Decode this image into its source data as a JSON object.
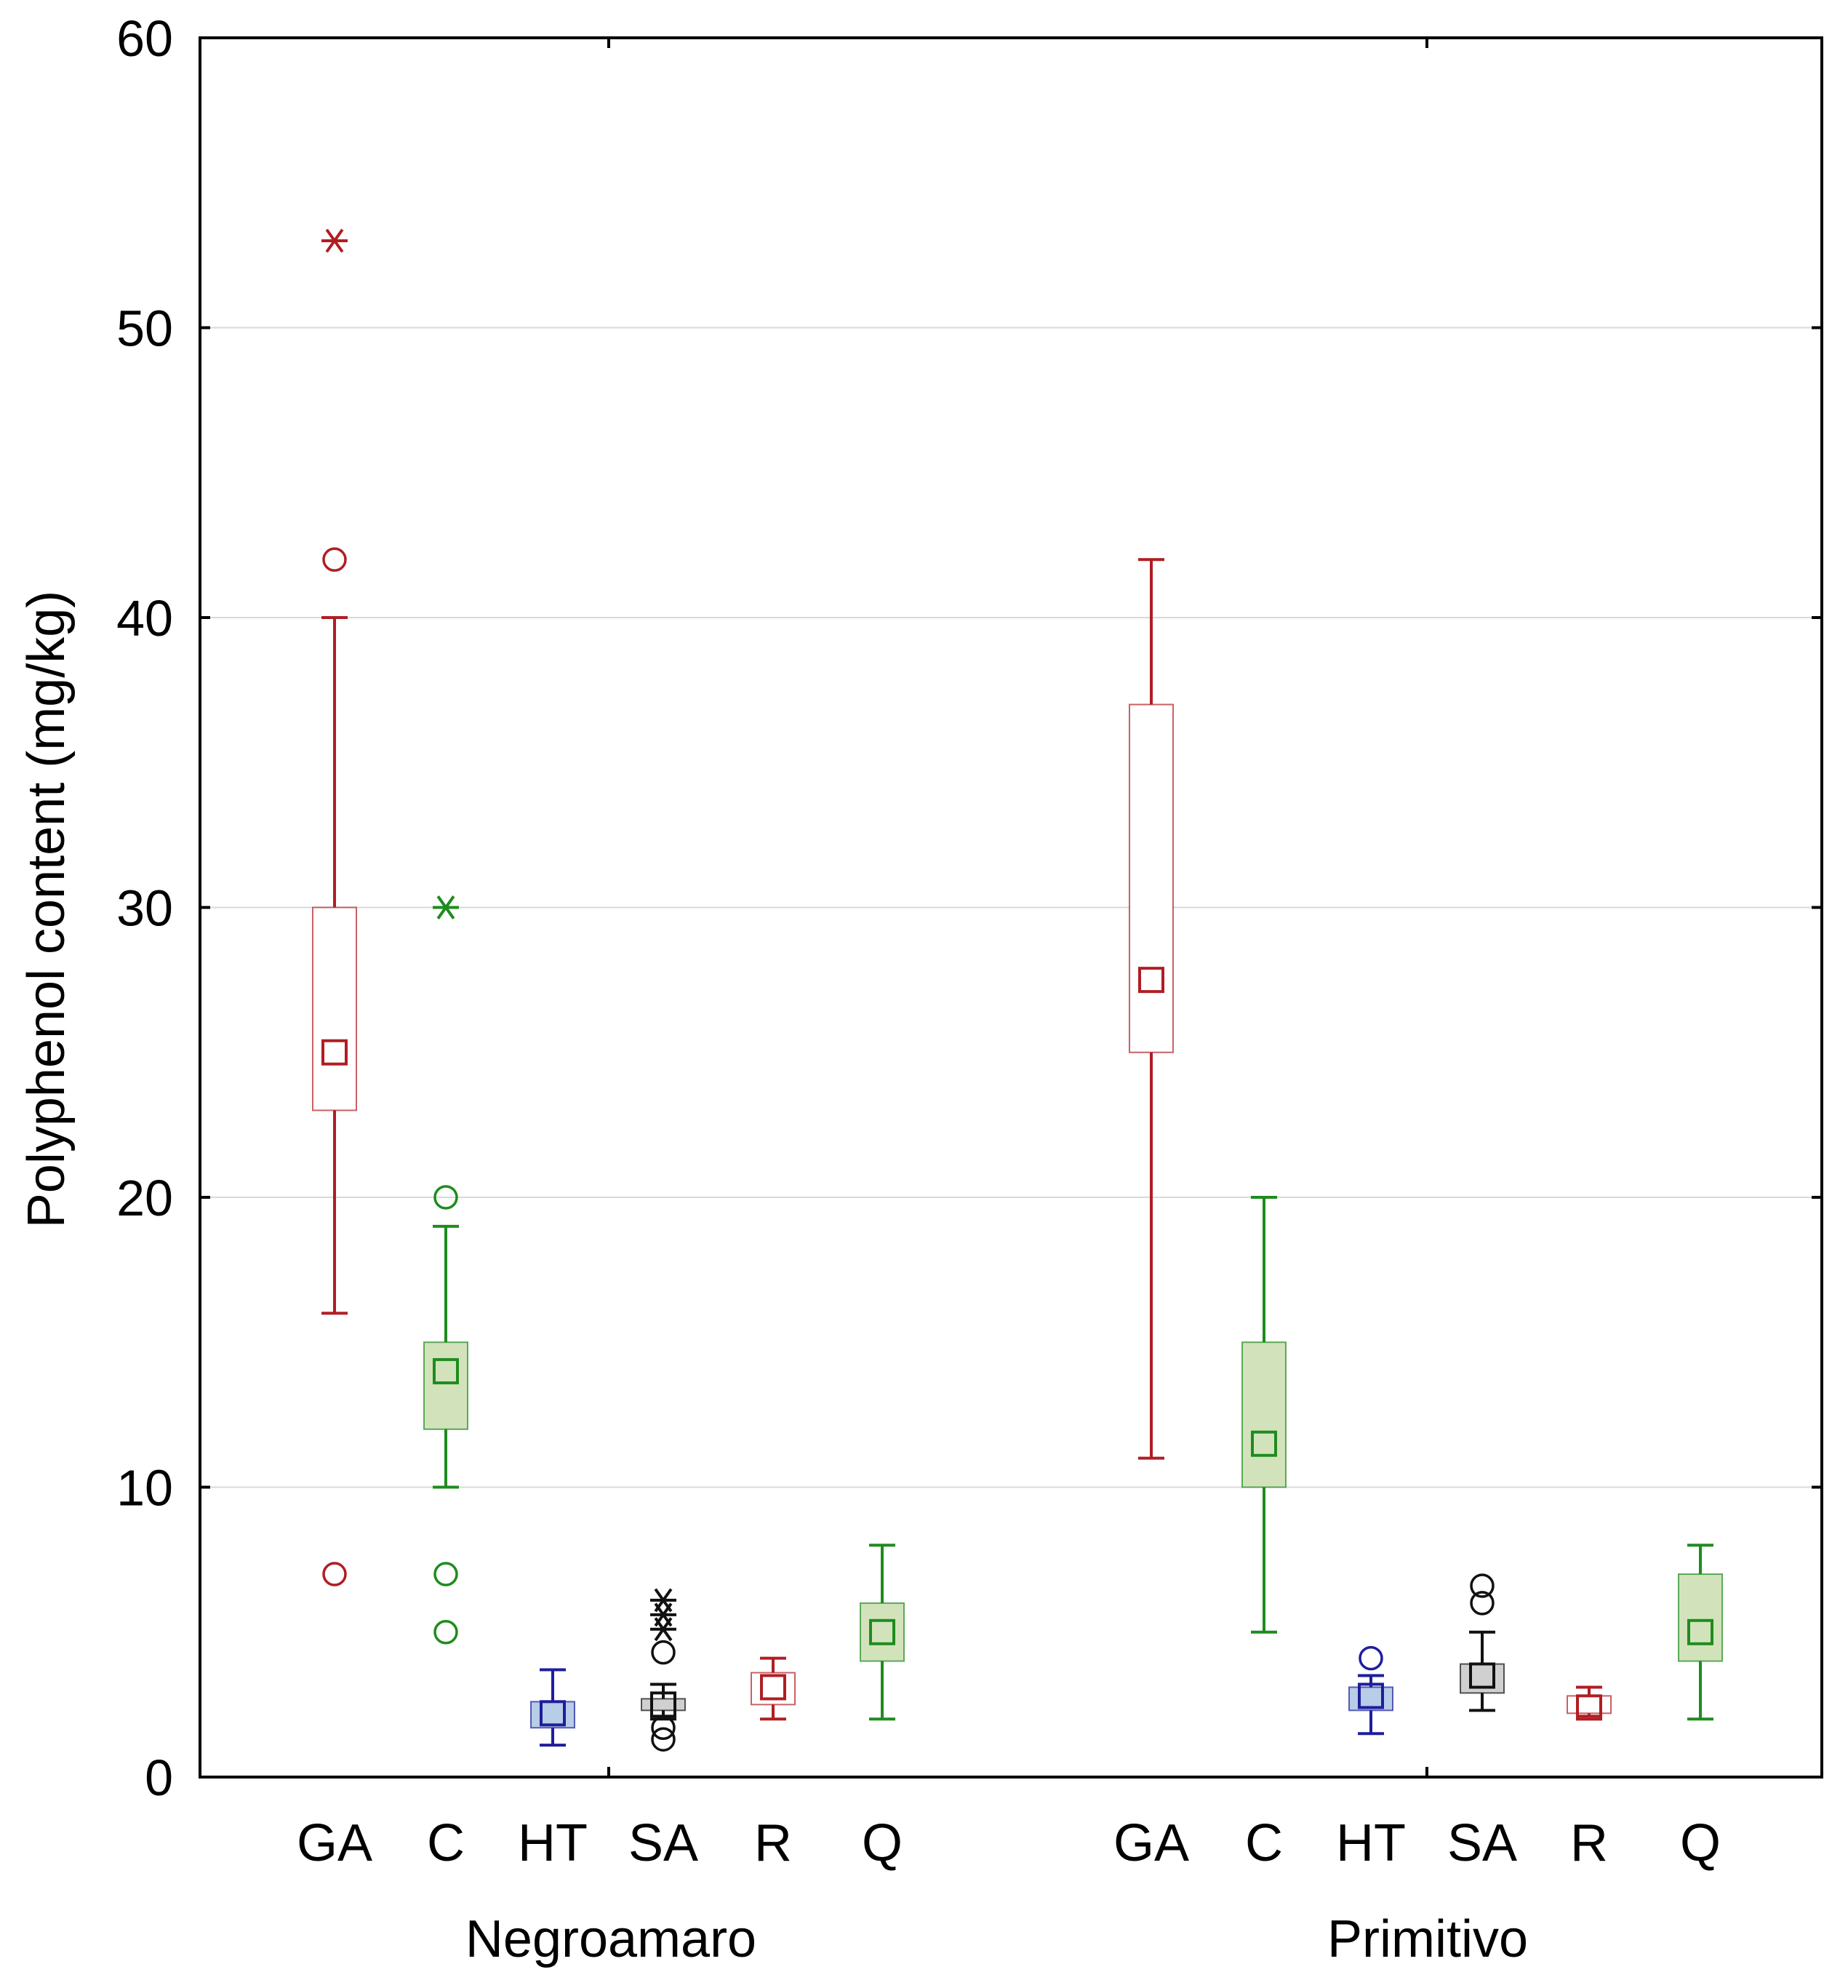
{
  "chart_data": {
    "type": "boxplot",
    "ylabel": "Polyphenol content (mg/kg)",
    "ylim": [
      0,
      60
    ],
    "yticks": [
      0,
      10,
      20,
      30,
      40,
      50,
      60
    ],
    "ytick_labels": [
      "0",
      "10",
      "20",
      "30",
      "40",
      "50",
      "60"
    ],
    "grid": true,
    "groups": [
      {
        "name": "Negroamaro",
        "boxes": [
          {
            "label": "GA",
            "color": "#B01E23",
            "fill": "#ffffff",
            "whisker_low": 16,
            "q1": 23,
            "median": 25,
            "q3": 30,
            "whisker_high": 40,
            "outliers": [
              42,
              7
            ],
            "extremes": [
              53
            ]
          },
          {
            "label": "C",
            "color": "#1E8C1E",
            "fill": "#D2E3BC",
            "whisker_low": 10,
            "q1": 12,
            "median": 14,
            "q3": 15,
            "whisker_high": 19,
            "outliers": [
              20,
              7,
              5
            ],
            "extremes": [
              30
            ]
          },
          {
            "label": "HT",
            "color": "#1E1E9C",
            "fill": "#B7CDE8",
            "whisker_low": 1.1,
            "q1": 1.7,
            "median": 2.2,
            "q3": 2.6,
            "whisker_high": 3.7,
            "outliers": [],
            "extremes": []
          },
          {
            "label": "SA",
            "color": "#111111",
            "fill": "#D0D0D0",
            "whisker_low": 2.0,
            "q1": 2.3,
            "median": 2.5,
            "q3": 2.7,
            "whisker_high": 3.2,
            "outliers": [
              4.3,
              1.7,
              1.3
            ],
            "extremes": [
              5.1,
              5.6,
              6.1
            ]
          },
          {
            "label": "R",
            "color": "#B01E23",
            "fill": "#ffffff",
            "whisker_low": 2.0,
            "q1": 2.5,
            "median": 3.1,
            "q3": 3.6,
            "whisker_high": 4.1,
            "outliers": [],
            "extremes": []
          },
          {
            "label": "Q",
            "color": "#1E8C1E",
            "fill": "#D2E3BC",
            "whisker_low": 2,
            "q1": 4,
            "median": 5,
            "q3": 6,
            "whisker_high": 8,
            "outliers": [],
            "extremes": []
          }
        ]
      },
      {
        "name": "Primitivo",
        "boxes": [
          {
            "label": "GA",
            "color": "#B01E23",
            "fill": "#ffffff",
            "whisker_low": 11,
            "q1": 25,
            "median": 27.5,
            "q3": 37,
            "whisker_high": 42,
            "outliers": [],
            "extremes": []
          },
          {
            "label": "C",
            "color": "#1E8C1E",
            "fill": "#D2E3BC",
            "whisker_low": 5,
            "q1": 10,
            "median": 11.5,
            "q3": 15,
            "whisker_high": 20,
            "outliers": [],
            "extremes": []
          },
          {
            "label": "HT",
            "color": "#1E1E9C",
            "fill": "#B7CDE8",
            "whisker_low": 1.5,
            "q1": 2.3,
            "median": 2.8,
            "q3": 3.1,
            "whisker_high": 3.5,
            "outliers": [
              4.1
            ],
            "extremes": []
          },
          {
            "label": "SA",
            "color": "#111111",
            "fill": "#D0D0D0",
            "whisker_low": 2.3,
            "q1": 2.9,
            "median": 3.5,
            "q3": 3.9,
            "whisker_high": 5.0,
            "outliers": [
              6.0,
              6.6
            ],
            "extremes": []
          },
          {
            "label": "R",
            "color": "#B01E23",
            "fill": "#ffffff",
            "whisker_low": 2.1,
            "q1": 2.2,
            "median": 2.4,
            "q3": 2.8,
            "whisker_high": 3.1,
            "outliers": [],
            "extremes": []
          },
          {
            "label": "Q",
            "color": "#1E8C1E",
            "fill": "#D2E3BC",
            "whisker_low": 2,
            "q1": 4,
            "median": 5,
            "q3": 7,
            "whisker_high": 8,
            "outliers": [],
            "extremes": []
          }
        ]
      }
    ]
  }
}
